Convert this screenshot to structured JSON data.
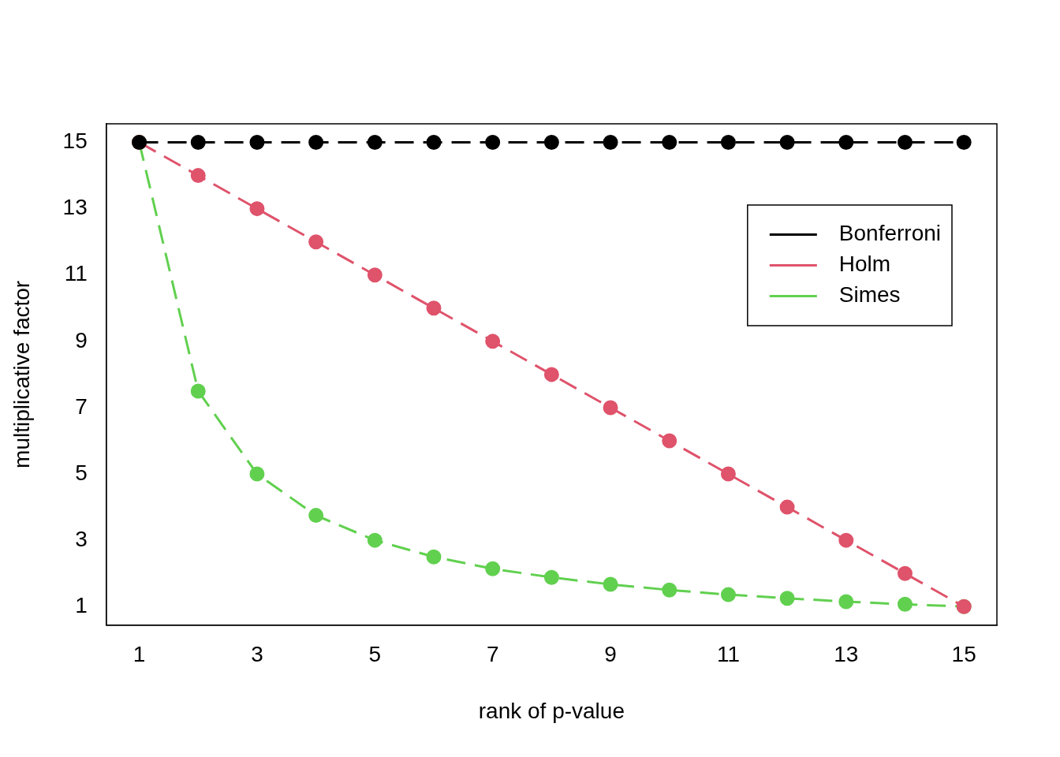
{
  "chart_data": {
    "type": "line",
    "x_label": "rank of p-value",
    "y_label": "multiplicative factor",
    "x": [
      1,
      2,
      3,
      4,
      5,
      6,
      7,
      8,
      9,
      10,
      11,
      12,
      13,
      14,
      15
    ],
    "series": [
      {
        "name": "Bonferroni",
        "color": "#000000",
        "marker": "circle",
        "line_style": "dashed",
        "values": [
          15,
          15,
          15,
          15,
          15,
          15,
          15,
          15,
          15,
          15,
          15,
          15,
          15,
          15,
          15
        ]
      },
      {
        "name": "Holm",
        "color": "#DF536B",
        "marker": "circle",
        "line_style": "dashed",
        "values": [
          15,
          14,
          13,
          12,
          11,
          10,
          9,
          8,
          7,
          6,
          5,
          4,
          3,
          2,
          1
        ]
      },
      {
        "name": "Simes",
        "color": "#61D04F",
        "marker": "circle",
        "line_style": "dashed",
        "values": [
          15,
          7.5,
          5,
          3.75,
          3,
          2.5,
          2.14,
          1.88,
          1.67,
          1.5,
          1.36,
          1.25,
          1.15,
          1.07,
          1
        ]
      }
    ],
    "xlim": [
      0.44,
      15.56
    ],
    "ylim": [
      0.44,
      15.56
    ],
    "xticks": [
      1,
      3,
      5,
      7,
      9,
      11,
      13,
      15
    ],
    "yticks": [
      1,
      3,
      5,
      7,
      9,
      11,
      13,
      15
    ],
    "grid": false,
    "legend": "top right"
  }
}
